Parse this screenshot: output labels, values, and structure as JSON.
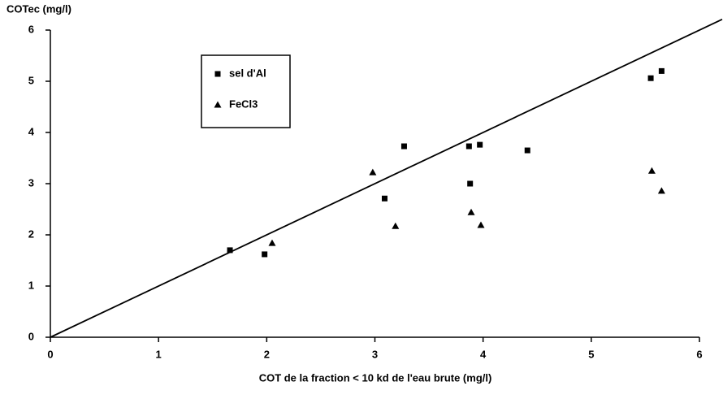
{
  "chart_data": {
    "type": "scatter",
    "y_label": "COTec (mg/l)",
    "x_label": "COT de la fraction < 10 kd de l'eau brute (mg/l)",
    "xlim": [
      0,
      6
    ],
    "ylim": [
      0,
      6
    ],
    "xticks": [
      0,
      1,
      2,
      3,
      4,
      5,
      6
    ],
    "yticks": [
      0,
      1,
      2,
      3,
      4,
      5,
      6
    ],
    "series": [
      {
        "name": "sel d'Al",
        "marker": "square",
        "color": "#000000",
        "x": [
          1.66,
          1.98,
          3.09,
          3.27,
          3.87,
          3.88,
          3.97,
          4.41,
          5.55,
          5.65
        ],
        "values": [
          1.7,
          1.62,
          2.71,
          3.73,
          3.73,
          3.0,
          3.76,
          3.65,
          5.06,
          5.2
        ]
      },
      {
        "name": "FeCl3",
        "marker": "triangle",
        "color": "#000000",
        "x": [
          2.05,
          2.98,
          3.19,
          3.89,
          3.98,
          5.56,
          5.65
        ],
        "values": [
          1.84,
          3.22,
          2.17,
          2.44,
          2.19,
          3.25,
          2.86
        ]
      }
    ]
  }
}
